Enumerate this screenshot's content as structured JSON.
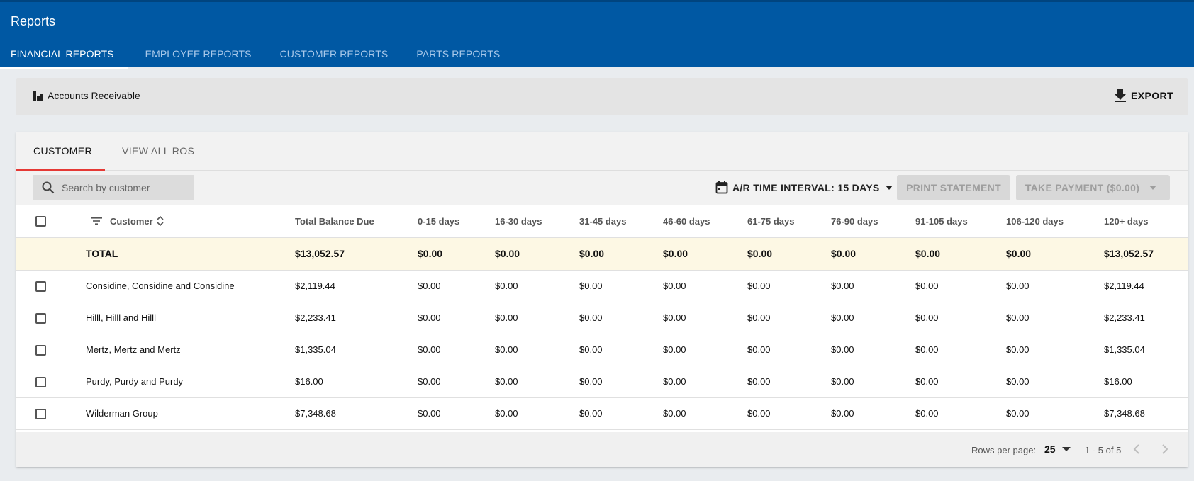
{
  "app": {
    "title": "Reports"
  },
  "tabs": [
    {
      "label": "FINANCIAL REPORTS",
      "active": true
    },
    {
      "label": "EMPLOYEE REPORTS",
      "active": false
    },
    {
      "label": "CUSTOMER REPORTS",
      "active": false
    },
    {
      "label": "PARTS REPORTS",
      "active": false
    }
  ],
  "toolbar": {
    "title": "Accounts Receivable",
    "title_icon": "bar-chart-icon",
    "export_label": "EXPORT",
    "export_icon": "download-icon"
  },
  "subtabs": [
    {
      "label": "CUSTOMER",
      "active": true
    },
    {
      "label": "VIEW ALL ROS",
      "active": false
    }
  ],
  "filters": {
    "search_placeholder": "Search by customer",
    "interval_label": "A/R TIME INTERVAL: 15 DAYS",
    "print_label": "PRINT STATEMENT",
    "pay_label": "TAKE PAYMENT ($0.00)"
  },
  "table": {
    "columns": [
      "Customer",
      "Total Balance Due",
      "0-15 days",
      "16-30 days",
      "31-45 days",
      "46-60 days",
      "61-75 days",
      "76-90 days",
      "91-105 days",
      "106-120 days",
      "120+ days"
    ],
    "total": {
      "label": "TOTAL",
      "values": [
        "$13,052.57",
        "$0.00",
        "$0.00",
        "$0.00",
        "$0.00",
        "$0.00",
        "$0.00",
        "$0.00",
        "$0.00",
        "$13,052.57"
      ]
    },
    "rows": [
      {
        "customer": "Considine, Considine and Considine",
        "values": [
          "$2,119.44",
          "$0.00",
          "$0.00",
          "$0.00",
          "$0.00",
          "$0.00",
          "$0.00",
          "$0.00",
          "$0.00",
          "$2,119.44"
        ]
      },
      {
        "customer": "Hilll, Hilll and Hilll",
        "values": [
          "$2,233.41",
          "$0.00",
          "$0.00",
          "$0.00",
          "$0.00",
          "$0.00",
          "$0.00",
          "$0.00",
          "$0.00",
          "$2,233.41"
        ]
      },
      {
        "customer": "Mertz, Mertz and Mertz",
        "values": [
          "$1,335.04",
          "$0.00",
          "$0.00",
          "$0.00",
          "$0.00",
          "$0.00",
          "$0.00",
          "$0.00",
          "$0.00",
          "$1,335.04"
        ]
      },
      {
        "customer": "Purdy, Purdy and Purdy",
        "values": [
          "$16.00",
          "$0.00",
          "$0.00",
          "$0.00",
          "$0.00",
          "$0.00",
          "$0.00",
          "$0.00",
          "$0.00",
          "$16.00"
        ]
      },
      {
        "customer": "Wilderman Group",
        "values": [
          "$7,348.68",
          "$0.00",
          "$0.00",
          "$0.00",
          "$0.00",
          "$0.00",
          "$0.00",
          "$0.00",
          "$0.00",
          "$7,348.68"
        ]
      }
    ]
  },
  "pagination": {
    "rows_per_page_label": "Rows per page:",
    "rows_per_page": "25",
    "range": "1 - 5 of 5"
  },
  "colors": {
    "appbar": "#0058a3",
    "active_subtab_underline": "#e53935",
    "total_row_bg": "#fdf8e4"
  }
}
